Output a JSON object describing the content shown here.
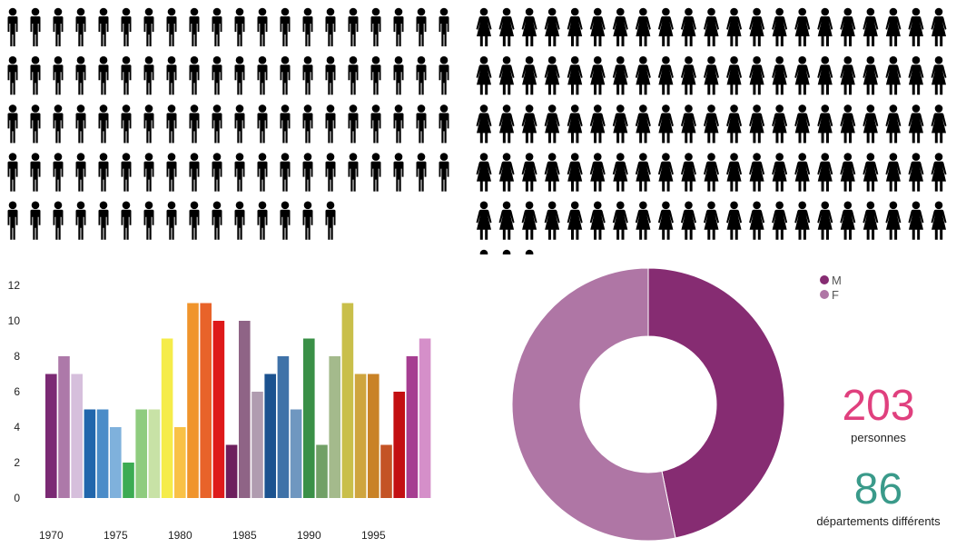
{
  "pictogram": {
    "male": {
      "count": 95,
      "per_row": 20,
      "color": "#000000",
      "icon": "male-person-icon"
    },
    "female": {
      "count": 108,
      "per_row": 21,
      "color": "#000000",
      "icon": "female-person-icon"
    }
  },
  "chart_data": [
    {
      "type": "bar",
      "x": [
        1970,
        1971,
        1972,
        1973,
        1974,
        1975,
        1976,
        1977,
        1978,
        1979,
        1980,
        1981,
        1982,
        1983,
        1984,
        1985,
        1986,
        1987,
        1988,
        1989,
        1990,
        1991,
        1992,
        1993,
        1994,
        1995,
        1996,
        1997,
        1998,
        1999
      ],
      "values": [
        7,
        8,
        7,
        5,
        5,
        4,
        2,
        5,
        5,
        9,
        4,
        11,
        11,
        10,
        3,
        10,
        6,
        7,
        8,
        5,
        9,
        3,
        8,
        11,
        7,
        7,
        3,
        6,
        8,
        9
      ],
      "colors": [
        "#7b2a74",
        "#ad79a9",
        "#d6bfdc",
        "#2166ac",
        "#4b8cc8",
        "#7fb1dc",
        "#3cab53",
        "#8fcc7f",
        "#c8e2a6",
        "#f5ec4a",
        "#f9c146",
        "#f0942c",
        "#e8632a",
        "#de1a1a",
        "#6d1f5d",
        "#8f6486",
        "#b09cb0",
        "#1b528f",
        "#3f72a8",
        "#6f97c0",
        "#3a9047",
        "#71a066",
        "#a4ba8c",
        "#c9bf4a",
        "#cfa53e",
        "#c98226",
        "#c45325",
        "#c30f12",
        "#a63e91",
        "#d58fc9"
      ],
      "xticks": [
        1970,
        1975,
        1980,
        1985,
        1990,
        1995
      ],
      "yticks": [
        0,
        2,
        4,
        6,
        8,
        10,
        12
      ],
      "ylim": [
        0,
        12
      ],
      "title": "",
      "xlabel": "",
      "ylabel": ""
    },
    {
      "type": "pie",
      "labels": [
        "M",
        "F"
      ],
      "values": [
        95,
        108
      ],
      "colors": [
        "#862c72",
        "#af76a5"
      ],
      "legend": "top-right"
    }
  ],
  "stats": {
    "persons": {
      "value": "203",
      "label": "personnes",
      "color": "#e0407e"
    },
    "departments": {
      "value": "86",
      "label": "départements différents",
      "color": "#3a9a8a"
    }
  }
}
